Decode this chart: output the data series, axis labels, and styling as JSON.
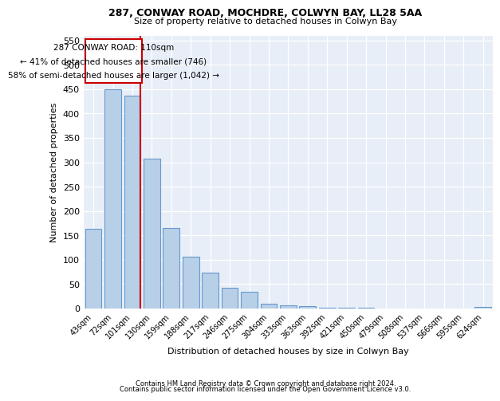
{
  "title": "287, CONWAY ROAD, MOCHDRE, COLWYN BAY, LL28 5AA",
  "subtitle": "Size of property relative to detached houses in Colwyn Bay",
  "xlabel": "Distribution of detached houses by size in Colwyn Bay",
  "ylabel": "Number of detached properties",
  "categories": [
    "43sqm",
    "72sqm",
    "101sqm",
    "130sqm",
    "159sqm",
    "188sqm",
    "217sqm",
    "246sqm",
    "275sqm",
    "304sqm",
    "333sqm",
    "363sqm",
    "392sqm",
    "421sqm",
    "450sqm",
    "479sqm",
    "508sqm",
    "537sqm",
    "566sqm",
    "595sqm",
    "624sqm"
  ],
  "bar_heights": [
    163,
    450,
    437,
    307,
    165,
    106,
    74,
    43,
    35,
    10,
    7,
    5,
    2,
    1,
    1,
    0,
    0,
    0,
    0,
    0,
    4
  ],
  "bar_color": "#b8cfe8",
  "bar_edge_color": "#6699cc",
  "marker_label": "287 CONWAY ROAD: 110sqm",
  "annotation_line1": "← 41% of detached houses are smaller (746)",
  "annotation_line2": "58% of semi-detached houses are larger (1,042) →",
  "marker_color": "#cc0000",
  "ylim": [
    0,
    560
  ],
  "yticks": [
    0,
    50,
    100,
    150,
    200,
    250,
    300,
    350,
    400,
    450,
    500,
    550
  ],
  "footer1": "Contains HM Land Registry data © Crown copyright and database right 2024.",
  "footer2": "Contains public sector information licensed under the Open Government Licence v3.0.",
  "plot_bg_color": "#e8eef8"
}
